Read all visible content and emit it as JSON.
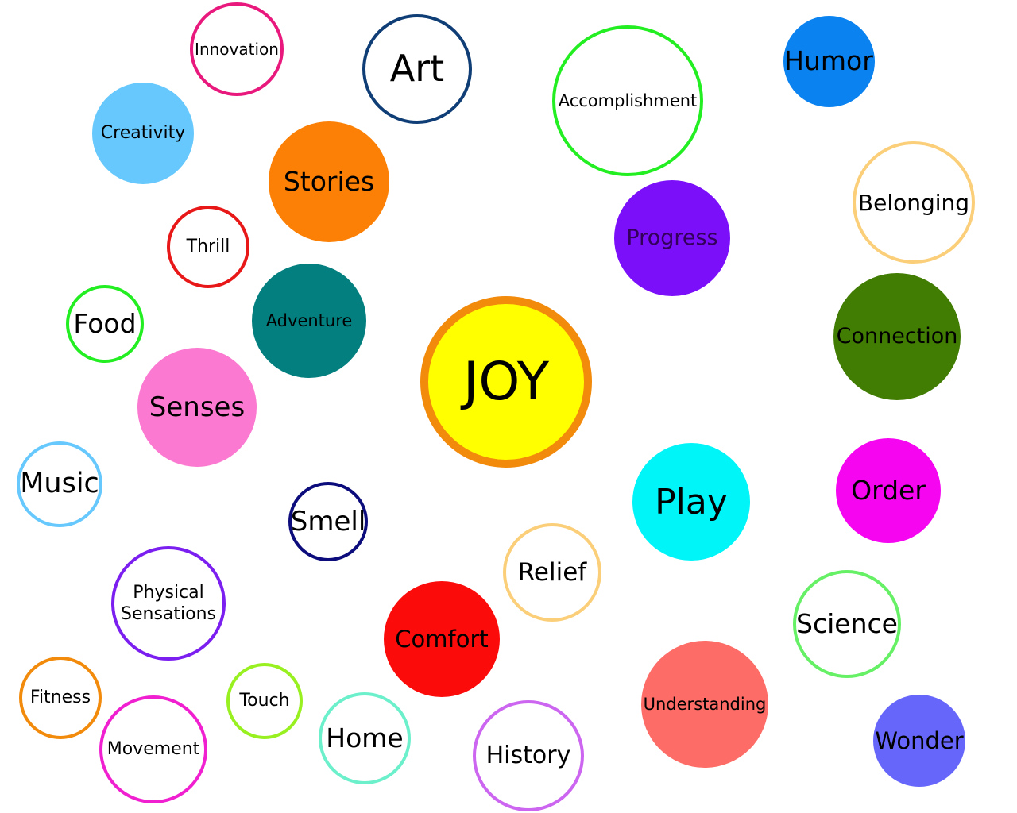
{
  "center": {
    "label": "JOY",
    "fill": "#ffff00",
    "border": "#f28a0c"
  },
  "bubbles": [
    {
      "label": "Innovation",
      "style": "outline",
      "color": "#e8187d"
    },
    {
      "label": "Art",
      "style": "outline",
      "color": "#0f3d75"
    },
    {
      "label": "Accomplishment",
      "style": "outline",
      "color": "#22ee22"
    },
    {
      "label": "Humor",
      "style": "filled",
      "color": "#0a82f0"
    },
    {
      "label": "Creativity",
      "style": "filled",
      "color": "#66c8fc"
    },
    {
      "label": "Stories",
      "style": "filled",
      "color": "#fb8005"
    },
    {
      "label": "Belonging",
      "style": "outline",
      "color": "#fbcf79"
    },
    {
      "label": "Progress",
      "style": "filled",
      "color": "#7b0ffa",
      "text_color": "#33005a"
    },
    {
      "label": "Thrill",
      "style": "outline",
      "color": "#e81818"
    },
    {
      "label": "Food",
      "style": "outline",
      "color": "#22ee22"
    },
    {
      "label": "Adventure",
      "style": "filled",
      "color": "#047f7f"
    },
    {
      "label": "Connection",
      "style": "filled",
      "color": "#417c03"
    },
    {
      "label": "Senses",
      "style": "filled",
      "color": "#fb79d0"
    },
    {
      "label": "Music",
      "style": "outline",
      "color": "#66c8fc"
    },
    {
      "label": "Smell",
      "style": "outline",
      "color": "#0c0c7c"
    },
    {
      "label": "Play",
      "style": "filled",
      "color": "#00f5f8"
    },
    {
      "label": "Order",
      "style": "filled",
      "color": "#f505f0"
    },
    {
      "label": "Physical\nSensations",
      "style": "outline",
      "color": "#7b1ff0"
    },
    {
      "label": "Relief",
      "style": "outline",
      "color": "#fbcf79"
    },
    {
      "label": "Comfort",
      "style": "filled",
      "color": "#fc0b0b"
    },
    {
      "label": "Science",
      "style": "outline",
      "color": "#66f066"
    },
    {
      "label": "Understanding",
      "style": "filled",
      "color": "#fd6c66"
    },
    {
      "label": "Fitness",
      "style": "outline",
      "color": "#f28a0c"
    },
    {
      "label": "Touch",
      "style": "outline",
      "color": "#99f020"
    },
    {
      "label": "Movement",
      "style": "outline",
      "color": "#f020d0"
    },
    {
      "label": "Home",
      "style": "outline",
      "color": "#6cf0cc"
    },
    {
      "label": "History",
      "style": "outline",
      "color": "#cc66f0"
    },
    {
      "label": "Wonder",
      "style": "filled",
      "color": "#6666fb"
    }
  ]
}
